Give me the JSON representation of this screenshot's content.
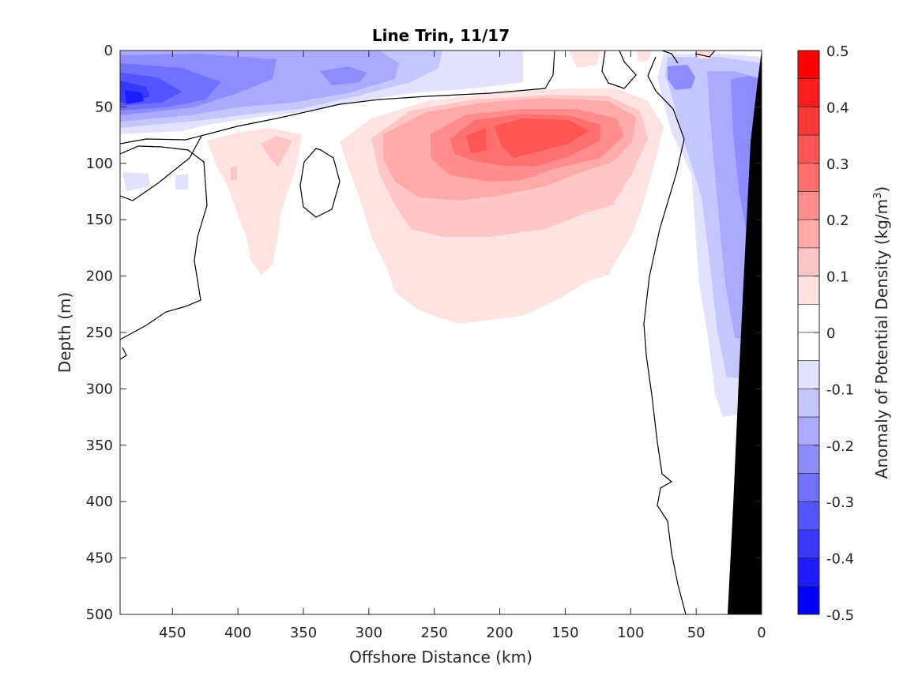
{
  "chart_data": {
    "type": "heatmap",
    "title": "Line Trin, 11/17",
    "xlabel": "Offshore Distance (km)",
    "ylabel": "Depth (m)",
    "colorbar_label_prefix": "Anomaly of Potential Density (kg/m",
    "colorbar_label_sup": "3",
    "colorbar_label_suffix": ")",
    "xlim": [
      490,
      0
    ],
    "ylim": [
      0,
      500
    ],
    "x_ticks": [
      "450",
      "400",
      "350",
      "300",
      "250",
      "200",
      "150",
      "100",
      "50",
      "0"
    ],
    "y_ticks": [
      "0",
      "50",
      "100",
      "150",
      "200",
      "250",
      "300",
      "350",
      "400",
      "450",
      "500"
    ],
    "colorbar_ticks": [
      "0.5",
      "0.4",
      "0.3",
      "0.2",
      "0.1",
      "0",
      "-0.1",
      "-0.2",
      "-0.3",
      "-0.4",
      "-0.5"
    ],
    "color_levels": [
      {
        "range": [
          0.45,
          0.5
        ],
        "color": "#ff0000"
      },
      {
        "range": [
          0.4,
          0.45
        ],
        "color": "#ff1c1c"
      },
      {
        "range": [
          0.35,
          0.4
        ],
        "color": "#ff3838"
      },
      {
        "range": [
          0.3,
          0.35
        ],
        "color": "#ff5555"
      },
      {
        "range": [
          0.25,
          0.3
        ],
        "color": "#ff7171"
      },
      {
        "range": [
          0.2,
          0.25
        ],
        "color": "#ff8d8d"
      },
      {
        "range": [
          0.15,
          0.2
        ],
        "color": "#ffaaaa"
      },
      {
        "range": [
          0.1,
          0.15
        ],
        "color": "#ffc6c6"
      },
      {
        "range": [
          0.05,
          0.1
        ],
        "color": "#ffe2e2"
      },
      {
        "range": [
          0.0,
          0.05
        ],
        "color": "#ffffff"
      },
      {
        "range": [
          -0.05,
          0.0
        ],
        "color": "#ffffff"
      },
      {
        "range": [
          -0.1,
          -0.05
        ],
        "color": "#e2e2ff"
      },
      {
        "range": [
          -0.15,
          -0.1
        ],
        "color": "#c6c6ff"
      },
      {
        "range": [
          -0.2,
          -0.15
        ],
        "color": "#aaaaff"
      },
      {
        "range": [
          -0.25,
          -0.2
        ],
        "color": "#8d8dff"
      },
      {
        "range": [
          -0.3,
          -0.25
        ],
        "color": "#7171ff"
      },
      {
        "range": [
          -0.35,
          -0.3
        ],
        "color": "#5555ff"
      },
      {
        "range": [
          -0.4,
          -0.35
        ],
        "color": "#3838ff"
      },
      {
        "range": [
          -0.45,
          -0.4
        ],
        "color": "#1c1cff"
      },
      {
        "range": [
          -0.5,
          -0.45
        ],
        "color": "#0000ff"
      }
    ],
    "seafloor_color": "#000000",
    "contour_color": "#000000"
  }
}
